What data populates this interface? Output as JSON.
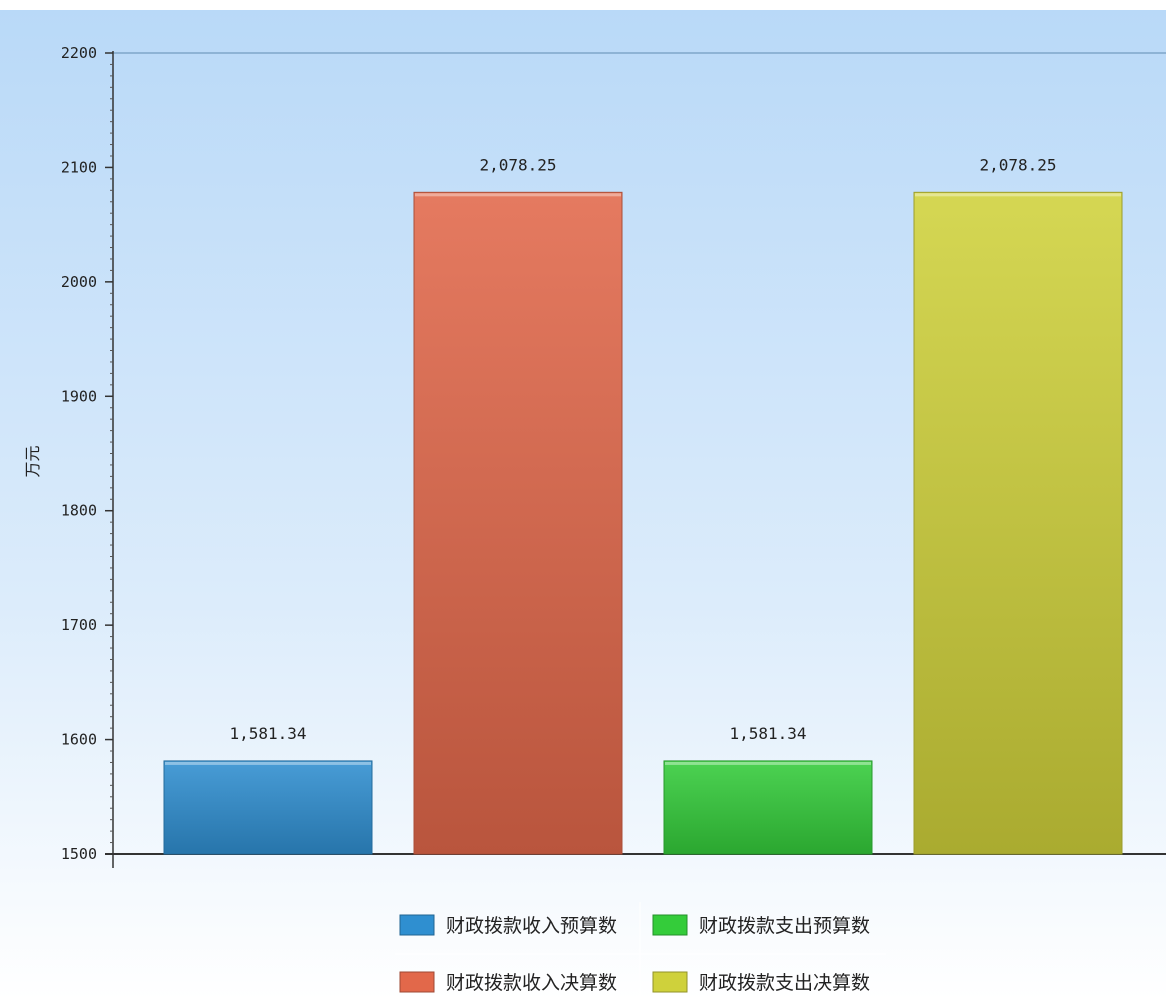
{
  "chart_data": {
    "type": "bar",
    "ylabel": "万元",
    "ylim": [
      1500,
      2200
    ],
    "yticks": [
      1500,
      1600,
      1700,
      1800,
      1900,
      2000,
      2100,
      2200
    ],
    "grid": false,
    "legend_position": "bottom-center",
    "bars": [
      {
        "legend": "财政拨款收入预算数",
        "value": 1581.34,
        "label": "1,581.34",
        "color": "#2f8fd0"
      },
      {
        "legend": "财政拨款收入决算数",
        "value": 2078.25,
        "label": "2,078.25",
        "color": "#e2684a"
      },
      {
        "legend": "财政拨款支出预算数",
        "value": 1581.34,
        "label": "1,581.34",
        "color": "#34cc3a"
      },
      {
        "legend": "财政拨款支出决算数",
        "value": 2078.25,
        "label": "2,078.25",
        "color": "#cfd13b"
      }
    ],
    "legend_order": [
      0,
      2,
      1,
      3
    ]
  }
}
